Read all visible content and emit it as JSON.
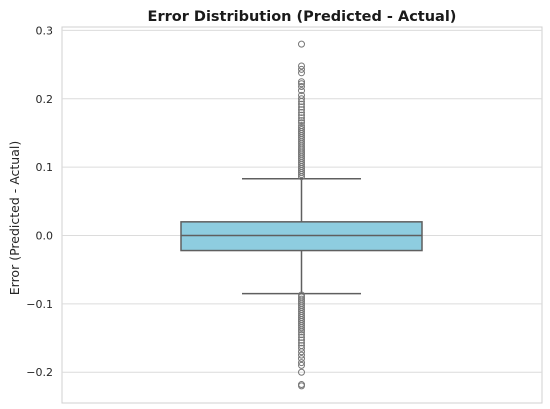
{
  "chart_data": {
    "type": "box",
    "title": "Error Distribution (Predicted - Actual)",
    "xlabel": "",
    "ylabel": "Error (Predicted - Actual)",
    "ylim": [
      -0.245,
      0.305
    ],
    "yticks": [
      -0.2,
      -0.1,
      0.0,
      0.1,
      0.2,
      0.3
    ],
    "ytick_labels": [
      "−0.2",
      "−0.1",
      "0.0",
      "0.1",
      "0.2",
      "0.3"
    ],
    "grid": "horizontal",
    "box": {
      "q1": -0.022,
      "median": 0.0,
      "q3": 0.02,
      "whisker_low": -0.085,
      "whisker_high": 0.083
    },
    "outliers_high": [
      0.28,
      0.248,
      0.243,
      0.238,
      0.225,
      0.222,
      0.218,
      0.212,
      0.205,
      0.2,
      0.196,
      0.192,
      0.188,
      0.184,
      0.18,
      0.176,
      0.172,
      0.168,
      0.165,
      0.161,
      0.158,
      0.155,
      0.152,
      0.149,
      0.146,
      0.143,
      0.14,
      0.137,
      0.134,
      0.131,
      0.128,
      0.125,
      0.122,
      0.119,
      0.116,
      0.113,
      0.11,
      0.107,
      0.104,
      0.101,
      0.098,
      0.095,
      0.092,
      0.089,
      0.086
    ],
    "outliers_low": [
      -0.087,
      -0.09,
      -0.093,
      -0.096,
      -0.099,
      -0.102,
      -0.105,
      -0.108,
      -0.111,
      -0.114,
      -0.117,
      -0.12,
      -0.123,
      -0.126,
      -0.129,
      -0.132,
      -0.135,
      -0.138,
      -0.141,
      -0.145,
      -0.149,
      -0.153,
      -0.157,
      -0.161,
      -0.165,
      -0.17,
      -0.175,
      -0.18,
      -0.186,
      -0.19,
      -0.2,
      -0.218,
      -0.22
    ],
    "colors": {
      "box_fill": "#8ecde0",
      "box_edge": "#5f5f5f",
      "grid": "#dcdcdc",
      "flier_edge": "#777777"
    }
  }
}
